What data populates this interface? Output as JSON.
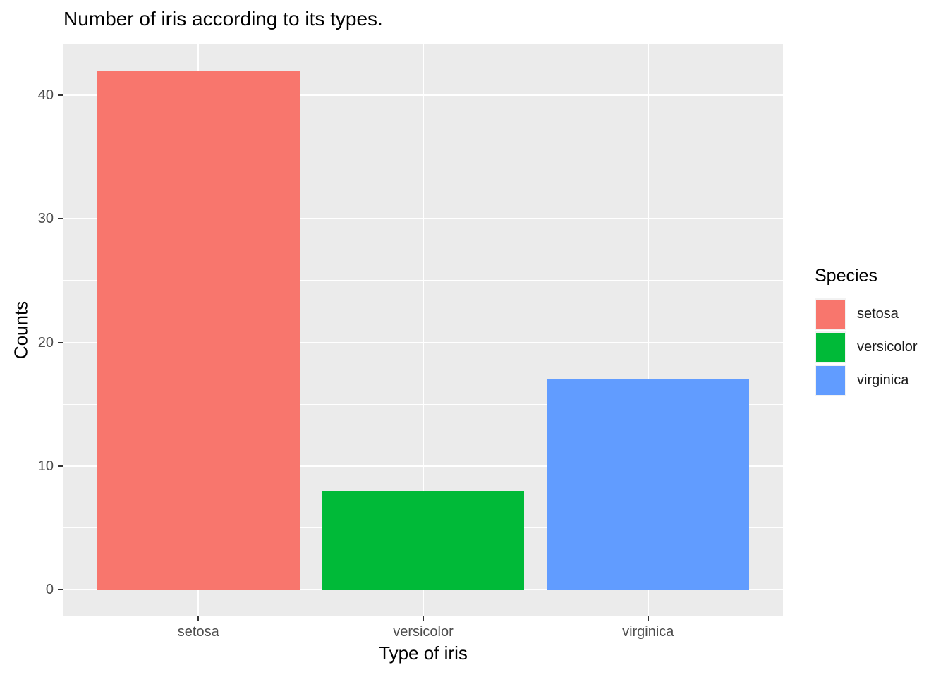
{
  "title": "Number of iris according to its types.",
  "chart_data": {
    "type": "bar",
    "title": "Number of iris according to its types.",
    "xlabel": "Type of iris",
    "ylabel": "Counts",
    "categories": [
      "setosa",
      "versicolor",
      "virginica"
    ],
    "values": [
      42,
      8,
      17
    ],
    "bar_colors": [
      "#F8766D",
      "#00BA38",
      "#619CFF"
    ],
    "y_ticks": [
      0,
      10,
      20,
      30,
      40
    ],
    "y_minor_ticks": [
      5,
      15,
      25,
      35
    ],
    "ylim": [
      -2.1,
      44.1
    ],
    "grid": "major-and-minor-white-on-gray",
    "panel_background": "#EBEBEB",
    "gridline_color": "#FFFFFF",
    "tick_mark_color": "#333333",
    "tick_label_color": "#4D4D4D",
    "bar_width_fraction": 0.9,
    "legend": {
      "position": "right",
      "title": "Species",
      "entries": [
        {
          "label": "setosa",
          "color": "#F8766D"
        },
        {
          "label": "versicolor",
          "color": "#00BA38"
        },
        {
          "label": "virginica",
          "color": "#619CFF"
        }
      ]
    }
  }
}
